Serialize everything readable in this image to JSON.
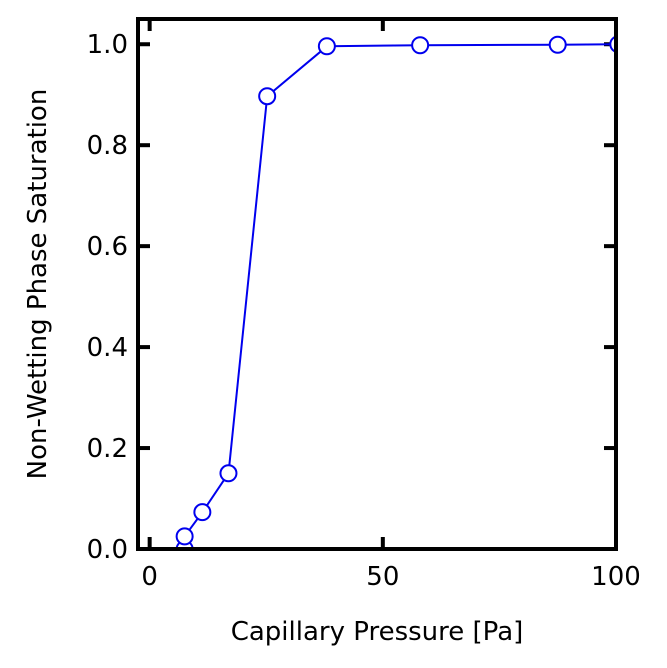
{
  "chart_data": {
    "type": "line",
    "title": "",
    "xlabel": "Capillary Pressure [Pa]",
    "ylabel": "Non-Wetting Phase Saturation",
    "xlim": [
      -2.5,
      100
    ],
    "ylim": [
      0,
      1.05
    ],
    "xticks": [
      0,
      50,
      100
    ],
    "xtick_labels": [
      "0",
      "50",
      "100"
    ],
    "yticks": [
      0.0,
      0.2,
      0.4,
      0.6,
      0.8,
      1.0
    ],
    "ytick_labels": [
      "0.0",
      "0.2",
      "0.4",
      "0.6",
      "0.8",
      "1.0"
    ],
    "grid": false,
    "legend": "none",
    "series": [
      {
        "color": "#0000ee",
        "marker": "open-circle",
        "x": [
          7.5,
          7.5,
          11.3,
          16.9,
          25.2,
          38.0,
          58.0,
          87.5,
          100.5
        ],
        "y": [
          0.0,
          0.025,
          0.073,
          0.15,
          0.897,
          0.996,
          0.998,
          0.999,
          1.0
        ]
      }
    ]
  }
}
